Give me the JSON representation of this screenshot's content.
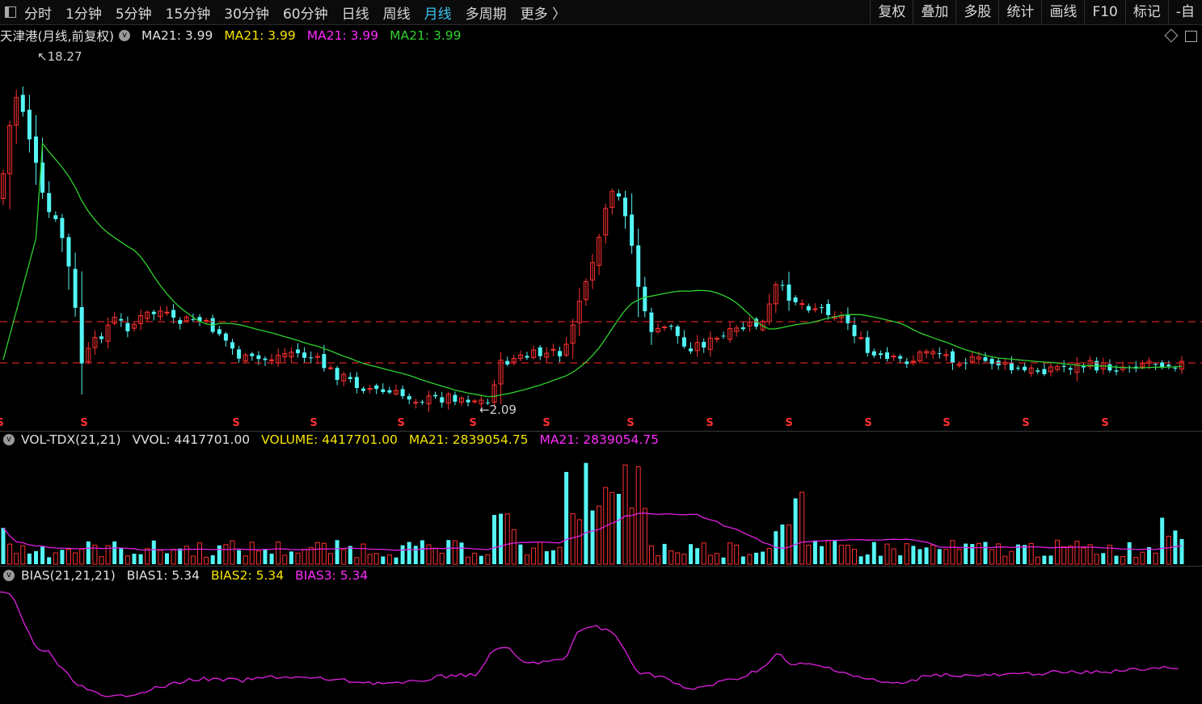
{
  "toolbar": {
    "periods": [
      "分时",
      "1分钟",
      "5分钟",
      "15分钟",
      "30分钟",
      "60分钟",
      "日线",
      "周线",
      "月线",
      "多周期",
      "更多 〉"
    ],
    "active_index": 8,
    "right_buttons": [
      "复权",
      "叠加",
      "多股",
      "统计",
      "画线",
      "F10",
      "标记",
      "-自"
    ],
    "left_icon": "panel-toggle-icon"
  },
  "main_legend": {
    "title": "天津港(月线,前复权)",
    "items": [
      {
        "label": "MA21: 3.99",
        "color": "#e0e0e0"
      },
      {
        "label": "MA21: 3.99",
        "color": "#f5e400"
      },
      {
        "label": "MA21: 3.99",
        "color": "#ff2bff"
      },
      {
        "label": "MA21: 3.99",
        "color": "#2fd12f"
      }
    ]
  },
  "price_annotations": {
    "high": "18.27",
    "low": "2.09"
  },
  "dividend_marker": "S",
  "vol_legend": {
    "title": "VOL-TDX(21,21)",
    "items": [
      {
        "label": "VVOL: 4417701.00",
        "color": "#e0e0e0"
      },
      {
        "label": "VOLUME: 4417701.00",
        "color": "#f5e400"
      },
      {
        "label": "MA21: 2839054.75",
        "color": "#f5e400"
      },
      {
        "label": "MA21: 2839054.75",
        "color": "#ff2bff"
      }
    ]
  },
  "bias_legend": {
    "title": "BIAS(21,21,21)",
    "items": [
      {
        "label": "BIAS1: 5.34",
        "color": "#e0e0e0"
      },
      {
        "label": "BIAS2: 5.34",
        "color": "#f5e400"
      },
      {
        "label": "BIAS3: 5.34",
        "color": "#ff2bff"
      }
    ]
  },
  "colors": {
    "up": "#ff3030",
    "down": "#54f5f5",
    "ma": "#2fd12f",
    "vol_ma": "#e020e0",
    "bias": "#e020e0",
    "dashed": "#d02020"
  }
}
